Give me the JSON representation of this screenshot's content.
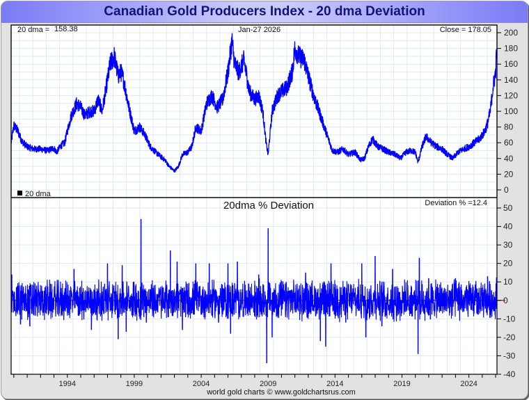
{
  "title": "Canadian Gold Producers Index - 20 dma Deviation",
  "colors": {
    "title_text": "#12127a",
    "series_line": "#0000ff",
    "zero_line": "#e00000",
    "grid": "#dbe9f5",
    "legend_box": "#000000"
  },
  "footer": "world gold charts © www.goldchartsrus.com",
  "chart_data": [
    {
      "type": "line",
      "panel": "price",
      "title": "",
      "header_left_label": "20 dma =",
      "header_left_value": "158.38",
      "header_center": "Jan-27  2026",
      "header_right": "Close = 178.05",
      "legend": [
        {
          "marker": "square",
          "label": "20 dma"
        }
      ],
      "legend_placement": "bottom-left",
      "ylim": [
        0,
        200
      ],
      "yticks": [
        0,
        20,
        40,
        60,
        80,
        100,
        120,
        140,
        160,
        180,
        200
      ],
      "xlim": [
        1989.8,
        2026.1
      ],
      "grid": true,
      "series": [
        {
          "name": "Canadian Gold Producers Index",
          "x": [
            1989.8,
            1990.0,
            1990.3,
            1990.6,
            1991.0,
            1991.5,
            1992.0,
            1992.5,
            1993.0,
            1993.2,
            1993.5,
            1993.8,
            1994.0,
            1994.3,
            1994.7,
            1995.0,
            1995.3,
            1995.7,
            1996.0,
            1996.3,
            1996.6,
            1996.9,
            1997.2,
            1997.5,
            1997.8,
            1998.0,
            1998.2,
            1998.6,
            1999.0,
            1999.4,
            1999.8,
            2000.2,
            2000.6,
            2001.0,
            2001.3,
            2001.6,
            2002.0,
            2002.3,
            2002.6,
            2003.0,
            2003.3,
            2003.6,
            2004.0,
            2004.4,
            2004.8,
            2005.2,
            2005.6,
            2006.0,
            2006.3,
            2006.5,
            2006.8,
            2007.2,
            2007.6,
            2008.0,
            2008.3,
            2008.6,
            2008.85,
            2009.0,
            2009.3,
            2009.7,
            2010.0,
            2010.4,
            2010.8,
            2011.0,
            2011.3,
            2011.7,
            2012.0,
            2012.4,
            2012.8,
            2013.1,
            2013.4,
            2013.8,
            2014.2,
            2014.6,
            2015.0,
            2015.5,
            2015.9,
            2016.2,
            2016.5,
            2016.8,
            2017.2,
            2017.6,
            2018.0,
            2018.5,
            2018.9,
            2019.3,
            2019.7,
            2020.0,
            2020.2,
            2020.5,
            2020.8,
            2021.2,
            2021.6,
            2022.0,
            2022.4,
            2022.8,
            2023.2,
            2023.6,
            2024.0,
            2024.4,
            2024.8,
            2025.0,
            2025.2,
            2025.4,
            2025.6,
            2025.8,
            2026.0,
            2026.07
          ],
          "y": [
            60,
            82,
            75,
            62,
            55,
            52,
            52,
            50,
            53,
            48,
            56,
            60,
            75,
            95,
            110,
            105,
            95,
            100,
            100,
            115,
            100,
            130,
            160,
            170,
            145,
            150,
            140,
            105,
            75,
            80,
            70,
            55,
            48,
            42,
            38,
            30,
            24,
            30,
            45,
            48,
            55,
            80,
            75,
            110,
            120,
            105,
            115,
            150,
            190,
            160,
            150,
            165,
            125,
            115,
            120,
            100,
            60,
            45,
            100,
            120,
            125,
            130,
            150,
            180,
            170,
            165,
            145,
            120,
            100,
            85,
            70,
            50,
            48,
            52,
            45,
            48,
            38,
            40,
            55,
            65,
            55,
            52,
            48,
            45,
            40,
            48,
            50,
            48,
            35,
            55,
            68,
            60,
            55,
            52,
            45,
            40,
            48,
            52,
            55,
            60,
            65,
            70,
            75,
            85,
            100,
            130,
            150,
            178
          ]
        }
      ]
    },
    {
      "type": "line",
      "panel": "deviation",
      "title": "20dma  %  Deviation",
      "header_right": "Deviation % =12.4",
      "ylim": [
        -40,
        50
      ],
      "yticks": [
        -40,
        -30,
        -20,
        -10,
        0,
        10,
        20,
        30,
        40,
        50
      ],
      "xlim": [
        1989.8,
        2026.1
      ],
      "xticks": [
        1994,
        1999,
        2004,
        2009,
        2014,
        2019,
        2024
      ],
      "grid": true,
      "reference_line": {
        "y": 0,
        "label": "zero"
      },
      "series": [
        {
          "name": "20dma % Deviation",
          "typical_range": [
            -10,
            10
          ],
          "spikes": [
            {
              "x": 1989.85,
              "y": 14
            },
            {
              "x": 1990.5,
              "y": -13
            },
            {
              "x": 1991.2,
              "y": -14
            },
            {
              "x": 1994.5,
              "y": 17
            },
            {
              "x": 1995.8,
              "y": -16
            },
            {
              "x": 1997.0,
              "y": 20
            },
            {
              "x": 1997.8,
              "y": -21
            },
            {
              "x": 1998.1,
              "y": 19
            },
            {
              "x": 1998.4,
              "y": -17
            },
            {
              "x": 1999.5,
              "y": 44
            },
            {
              "x": 1999.9,
              "y": -12
            },
            {
              "x": 2001.7,
              "y": 27
            },
            {
              "x": 2002.2,
              "y": 21
            },
            {
              "x": 2002.6,
              "y": -16
            },
            {
              "x": 2003.6,
              "y": 20
            },
            {
              "x": 2004.6,
              "y": 20
            },
            {
              "x": 2005.3,
              "y": -12
            },
            {
              "x": 2006.0,
              "y": 20
            },
            {
              "x": 2006.2,
              "y": -18
            },
            {
              "x": 2006.7,
              "y": 21
            },
            {
              "x": 2008.3,
              "y": 14
            },
            {
              "x": 2008.9,
              "y": -34
            },
            {
              "x": 2009.0,
              "y": 39
            },
            {
              "x": 2009.3,
              "y": -20
            },
            {
              "x": 2011.8,
              "y": 15
            },
            {
              "x": 2012.9,
              "y": -22
            },
            {
              "x": 2013.3,
              "y": -25
            },
            {
              "x": 2013.7,
              "y": 20
            },
            {
              "x": 2014.8,
              "y": -12
            },
            {
              "x": 2016.0,
              "y": 20
            },
            {
              "x": 2016.3,
              "y": -20
            },
            {
              "x": 2017.0,
              "y": 24
            },
            {
              "x": 2017.5,
              "y": -14
            },
            {
              "x": 2018.3,
              "y": 17
            },
            {
              "x": 2020.2,
              "y": -29
            },
            {
              "x": 2020.3,
              "y": 23
            },
            {
              "x": 2021.0,
              "y": 12
            },
            {
              "x": 2023.0,
              "y": 12
            },
            {
              "x": 2025.4,
              "y": 13
            },
            {
              "x": 2025.6,
              "y": -8
            },
            {
              "x": 2026.07,
              "y": 12.4
            }
          ]
        }
      ]
    }
  ]
}
